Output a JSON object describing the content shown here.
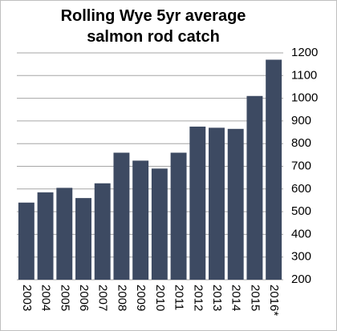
{
  "chart_data": {
    "type": "bar",
    "title": "Rolling Wye 5yr average salmon rod catch",
    "categories": [
      "2003",
      "2004",
      "2005",
      "2006",
      "2007",
      "2008",
      "2009",
      "2010",
      "2011",
      "2012",
      "2013",
      "2014",
      "2015",
      "2016*"
    ],
    "values": [
      540,
      585,
      605,
      560,
      625,
      760,
      725,
      690,
      760,
      875,
      870,
      865,
      1010,
      1170
    ],
    "color": "#3d4a62",
    "ylim": [
      200,
      1200
    ],
    "yticks": [
      200,
      300,
      400,
      500,
      600,
      700,
      800,
      900,
      1000,
      1100,
      1200
    ],
    "grid": true
  }
}
